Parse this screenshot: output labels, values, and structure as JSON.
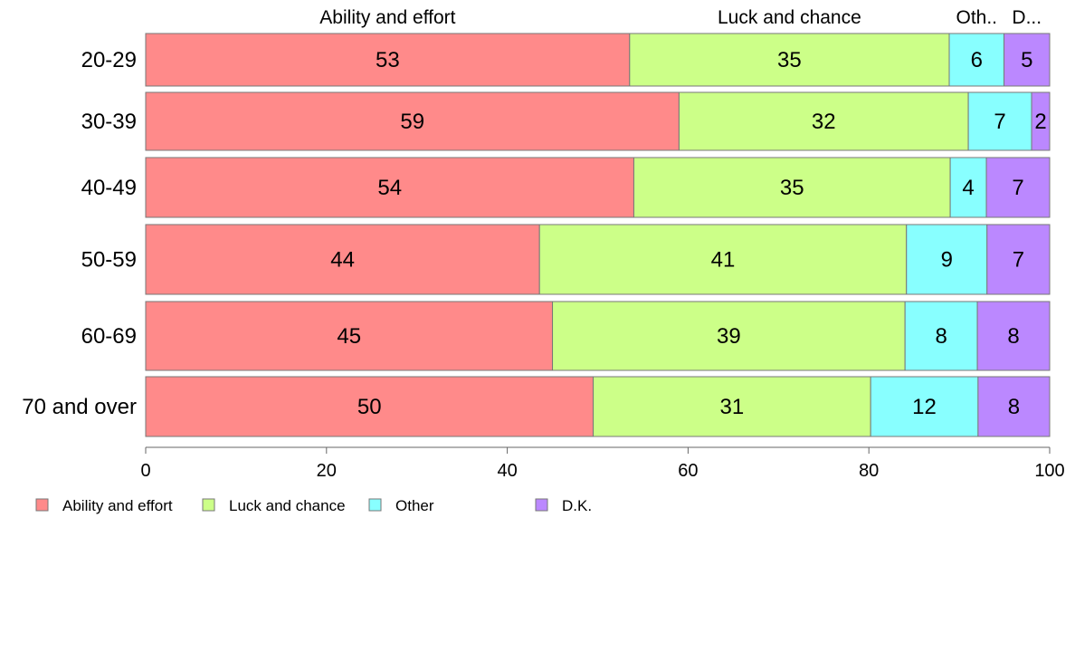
{
  "chart_data": {
    "type": "bar",
    "orientation": "horizontal",
    "stacked": true,
    "categories": [
      "20-29",
      "30-39",
      "40-49",
      "50-59",
      "60-69",
      "70 and over"
    ],
    "series": [
      {
        "name": "Ability and effort",
        "color": "#FF8A8A",
        "values": [
          53,
          59,
          54,
          44,
          45,
          50
        ]
      },
      {
        "name": "Luck and chance",
        "color": "#CCFF88",
        "values": [
          35,
          32,
          35,
          41,
          39,
          31
        ]
      },
      {
        "name": "Other",
        "color": "#88FFFF",
        "values": [
          6,
          7,
          4,
          9,
          8,
          12
        ]
      },
      {
        "name": "D.K.",
        "color": "#BB88FF",
        "values": [
          5,
          2,
          7,
          7,
          8,
          8
        ]
      }
    ],
    "top_labels": [
      "Ability and effort",
      "Luck and chance",
      "Oth..",
      "D..."
    ],
    "x_ticks": [
      0,
      20,
      40,
      60,
      80,
      100
    ],
    "xlim": [
      0,
      100
    ],
    "title": "",
    "xlabel": "",
    "ylabel": "",
    "grid": false,
    "legend_position": "bottom-left"
  }
}
